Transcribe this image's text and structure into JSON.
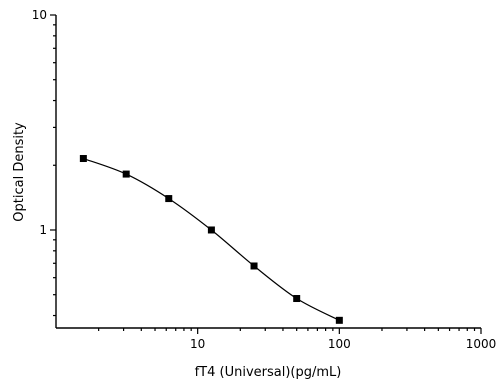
{
  "chart_data": {
    "type": "scatter",
    "xlabel": "fT4 (Universal)(pg/mL)",
    "ylabel": "Optical Density",
    "xscale": "log",
    "yscale": "log",
    "xlim": [
      1,
      1000
    ],
    "ylim": [
      0.35,
      10
    ],
    "x_ticks": [
      10,
      100,
      1000
    ],
    "x_tick_labels": [
      "10",
      "100",
      "1000"
    ],
    "y_ticks": [
      1,
      10
    ],
    "y_tick_labels": [
      "1",
      "10"
    ],
    "grid": false,
    "legend": false,
    "series": [
      {
        "x": [
          1.56,
          3.13,
          6.25,
          12.5,
          25,
          50,
          100
        ],
        "y": [
          2.15,
          1.82,
          1.4,
          1.0,
          0.68,
          0.48,
          0.38
        ],
        "marker": "square",
        "line": "smooth",
        "color": "#000000"
      }
    ]
  }
}
